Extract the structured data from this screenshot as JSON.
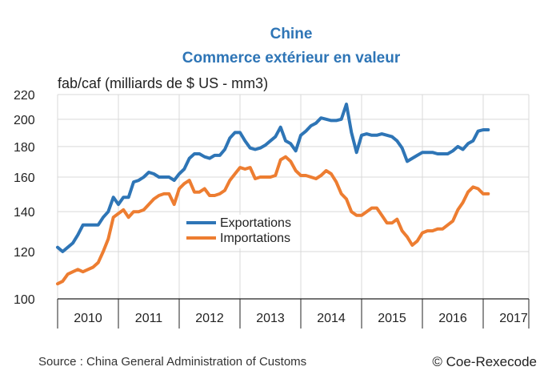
{
  "title_line1": "Chine",
  "title_line2": "Commerce extérieur en valeur",
  "unit_label": "fab/caf (milliards de $ US - mm3)",
  "source": "Source : China General Administration of Customs",
  "copyright": "© Coe-Rexecode",
  "colors": {
    "exports": "#2e75b6",
    "imports": "#ed7d31",
    "grid": "#d9d9d9",
    "title": "#2e75b6"
  },
  "chart_data": {
    "type": "line",
    "yscale": "log",
    "ylim": [
      100,
      220
    ],
    "yticks": [
      100,
      120,
      140,
      160,
      180,
      200,
      220
    ],
    "x_start": 2010.0,
    "x_end": 2017.75,
    "year_labels": [
      "2010",
      "2011",
      "2012",
      "2013",
      "2014",
      "2015",
      "2016",
      "2017"
    ],
    "legend": [
      "Exportations",
      "Importations"
    ],
    "series": [
      {
        "name": "Exportations",
        "x_start": 2010.0,
        "step": 0.08333,
        "values": [
          122,
          120,
          122,
          124,
          128,
          133,
          133,
          133,
          133,
          137,
          140,
          148,
          144,
          148,
          148,
          157,
          158,
          160,
          163,
          162,
          160,
          160,
          160,
          158,
          162,
          165,
          172,
          175,
          175,
          173,
          172,
          174,
          174,
          178,
          186,
          190,
          190,
          184,
          179,
          178,
          179,
          181,
          184,
          187,
          194,
          184,
          182,
          177,
          188,
          191,
          195,
          197,
          201,
          200,
          199,
          199,
          200,
          212,
          190,
          176,
          188,
          189,
          188,
          188,
          189,
          188,
          187,
          184,
          179,
          170,
          172,
          174,
          176,
          176,
          176,
          175,
          175,
          175,
          177,
          180,
          178,
          182,
          184,
          191,
          192,
          192
        ]
      },
      {
        "name": "Importations",
        "x_start": 2010.0,
        "step": 0.08333,
        "values": [
          106,
          107,
          110,
          111,
          112,
          111,
          112,
          113,
          115,
          120,
          126,
          137,
          139,
          141,
          137,
          140,
          140,
          141,
          144,
          147,
          149,
          150,
          150,
          144,
          153,
          156,
          158,
          151,
          151,
          153,
          149,
          149,
          150,
          152,
          158,
          162,
          166,
          165,
          166,
          159,
          160,
          160,
          160,
          161,
          171,
          173,
          170,
          164,
          161,
          161,
          160,
          159,
          161,
          164,
          162,
          157,
          150,
          147,
          140,
          138,
          138,
          140,
          142,
          142,
          138,
          134,
          134,
          136,
          130,
          127,
          123,
          125,
          129,
          130,
          130,
          131,
          131,
          133,
          135,
          141,
          145,
          151,
          154,
          153,
          150,
          150
        ]
      }
    ]
  }
}
